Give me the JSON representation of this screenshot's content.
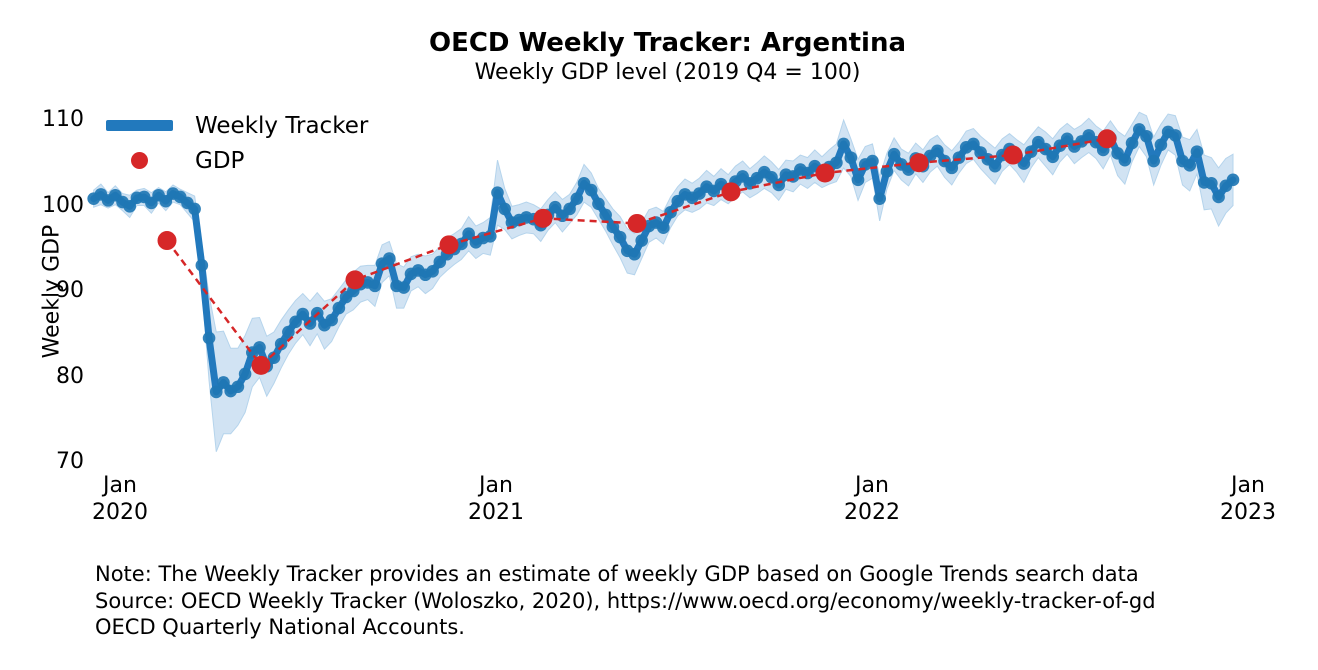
{
  "figure": {
    "title": "OECD Weekly Tracker: Argentina",
    "subtitle": "Weekly GDP level (2019 Q4 = 100)"
  },
  "note": {
    "line1": "Note: The Weekly Tracker provides an estimate of weekly GDP based on Google Trends search data",
    "line2": "Source: OECD Weekly Tracker (Woloszko, 2020), https://www.oecd.org/economy/weekly-tracker-of-gd",
    "line3": "OECD Quarterly National Accounts."
  },
  "colors": {
    "tracker_line": "#2279bd",
    "tracker_marker": "#1f77b4",
    "band_fill": "#c9dff2",
    "band_edge": "#a9cde9",
    "gdp_red": "#d62728"
  },
  "chart_data": {
    "type": "line",
    "title": "OECD Weekly Tracker: Argentina",
    "subtitle": "Weekly GDP level (2019 Q4 = 100)",
    "xlabel": "",
    "ylabel": "Weekly GDP",
    "grid": false,
    "legend_position": "upper left",
    "y_ticks": [
      110,
      100,
      90,
      80,
      70
    ],
    "ylim": [
      69.5,
      112
    ],
    "x_ticks": [
      {
        "month": "Jan",
        "year": "2020",
        "t": 0
      },
      {
        "month": "Jan",
        "year": "2021",
        "t": 1
      },
      {
        "month": "Jan",
        "year": "2022",
        "t": 2
      },
      {
        "month": "Jan",
        "year": "2023",
        "t": 3
      }
    ],
    "x_range_years_shown": [
      -0.07,
      2.96
    ],
    "series": [
      {
        "name": "Weekly Tracker",
        "type": "line+markers+confidence-band",
        "frequency": "weekly",
        "t_start": -0.07,
        "t_step": 0.019178,
        "values": [
          100.8,
          101.3,
          100.6,
          101.2,
          100.4,
          99.9,
          100.9,
          101.0,
          100.3,
          101.2,
          100.5,
          101.4,
          101.0,
          100.3,
          99.6,
          93.0,
          84.5,
          78.2,
          79.3,
          78.3,
          78.8,
          80.3,
          82.8,
          83.4,
          81.2,
          82.2,
          83.8,
          85.2,
          86.4,
          87.3,
          86.2,
          87.4,
          86.0,
          86.6,
          88.0,
          89.3,
          90.0,
          90.8,
          91.0,
          90.6,
          93.2,
          93.8,
          90.6,
          90.4,
          92.0,
          92.4,
          91.9,
          92.3,
          93.4,
          94.3,
          94.9,
          95.5,
          96.7,
          95.7,
          96.2,
          96.4,
          101.5,
          99.6,
          98.0,
          98.3,
          98.6,
          98.4,
          97.7,
          98.9,
          99.8,
          98.8,
          99.6,
          100.8,
          102.6,
          101.8,
          100.2,
          98.9,
          97.5,
          96.3,
          94.7,
          94.3,
          95.9,
          97.6,
          98.0,
          97.4,
          99.2,
          100.5,
          101.3,
          100.9,
          101.4,
          102.2,
          101.7,
          102.5,
          101.9,
          102.8,
          103.4,
          102.6,
          103.2,
          103.9,
          103.3,
          102.4,
          103.6,
          103.4,
          104.2,
          103.8,
          104.6,
          103.9,
          104.5,
          105.0,
          107.2,
          105.6,
          103.0,
          104.8,
          105.2,
          100.8,
          104.0,
          106.0,
          104.8,
          104.2,
          105.5,
          104.6,
          105.8,
          106.4,
          105.2,
          104.4,
          105.6,
          106.8,
          107.2,
          106.2,
          105.4,
          104.6,
          105.9,
          106.6,
          105.8,
          104.9,
          106.3,
          107.4,
          106.6,
          105.7,
          107.0,
          107.8,
          106.9,
          107.5,
          108.2,
          107.4,
          106.5,
          107.9,
          106.1,
          105.3,
          107.3,
          108.9,
          108.1,
          105.2,
          107.1,
          108.6,
          108.2,
          105.2,
          104.7,
          106.3,
          102.7,
          102.6,
          101.0,
          102.3,
          103.0
        ],
        "band_halfwidth": [
          1.0,
          1.2,
          0.9,
          1.1,
          1.0,
          1.3,
          0.9,
          1.0,
          1.2,
          0.9,
          1.1,
          1.0,
          0.9,
          1.2,
          1.5,
          2.5,
          5.0,
          7.0,
          6.0,
          5.0,
          4.5,
          4.5,
          4.0,
          3.5,
          3.5,
          3.0,
          2.8,
          2.6,
          2.5,
          2.4,
          2.6,
          2.4,
          2.8,
          2.5,
          2.2,
          2.0,
          2.2,
          2.1,
          2.0,
          2.4,
          2.2,
          2.0,
          2.6,
          2.4,
          2.0,
          1.9,
          2.2,
          2.0,
          1.8,
          1.9,
          1.8,
          1.8,
          2.0,
          1.9,
          1.8,
          2.2,
          3.8,
          2.4,
          1.9,
          1.8,
          1.8,
          1.7,
          1.9,
          1.8,
          1.8,
          1.9,
          1.7,
          1.9,
          2.2,
          2.0,
          1.8,
          1.9,
          2.1,
          2.4,
          2.6,
          2.4,
          2.1,
          1.9,
          1.8,
          1.9,
          1.8,
          1.7,
          1.8,
          1.7,
          1.8,
          1.9,
          1.7,
          1.8,
          1.7,
          1.8,
          1.8,
          1.7,
          1.8,
          1.9,
          1.8,
          1.8,
          1.7,
          1.8,
          1.7,
          1.8,
          1.9,
          1.8,
          2.0,
          2.2,
          2.8,
          2.2,
          2.4,
          2.1,
          2.0,
          2.6,
          2.1,
          1.9,
          1.8,
          1.9,
          1.8,
          1.9,
          1.9,
          1.8,
          1.9,
          2.0,
          1.8,
          1.9,
          1.8,
          1.9,
          2.0,
          2.1,
          1.9,
          1.8,
          1.9,
          2.2,
          1.9,
          1.8,
          2.0,
          2.1,
          1.9,
          1.8,
          2.0,
          1.9,
          2.0,
          1.9,
          2.2,
          2.0,
          2.6,
          2.8,
          2.2,
          2.0,
          2.4,
          2.8,
          2.4,
          2.1,
          2.3,
          2.8,
          3.0,
          2.6,
          3.2,
          3.0,
          3.4,
          3.2,
          3.0
        ]
      },
      {
        "name": "GDP",
        "type": "scatter+dashed-line",
        "frequency": "quarterly",
        "points": [
          {
            "quarter": "2020 Q1",
            "t": 0.125,
            "value": 95.9
          },
          {
            "quarter": "2020 Q2",
            "t": 0.375,
            "value": 81.3
          },
          {
            "quarter": "2020 Q3",
            "t": 0.625,
            "value": 91.3
          },
          {
            "quarter": "2020 Q4",
            "t": 0.875,
            "value": 95.4
          },
          {
            "quarter": "2021 Q1",
            "t": 1.125,
            "value": 98.5
          },
          {
            "quarter": "2021 Q2",
            "t": 1.375,
            "value": 97.9
          },
          {
            "quarter": "2021 Q3",
            "t": 1.625,
            "value": 101.6
          },
          {
            "quarter": "2021 Q4",
            "t": 1.875,
            "value": 103.8
          },
          {
            "quarter": "2022 Q1",
            "t": 2.125,
            "value": 105.0
          },
          {
            "quarter": "2022 Q2",
            "t": 2.375,
            "value": 105.9
          },
          {
            "quarter": "2022 Q3",
            "t": 2.625,
            "value": 107.8
          }
        ]
      }
    ]
  }
}
